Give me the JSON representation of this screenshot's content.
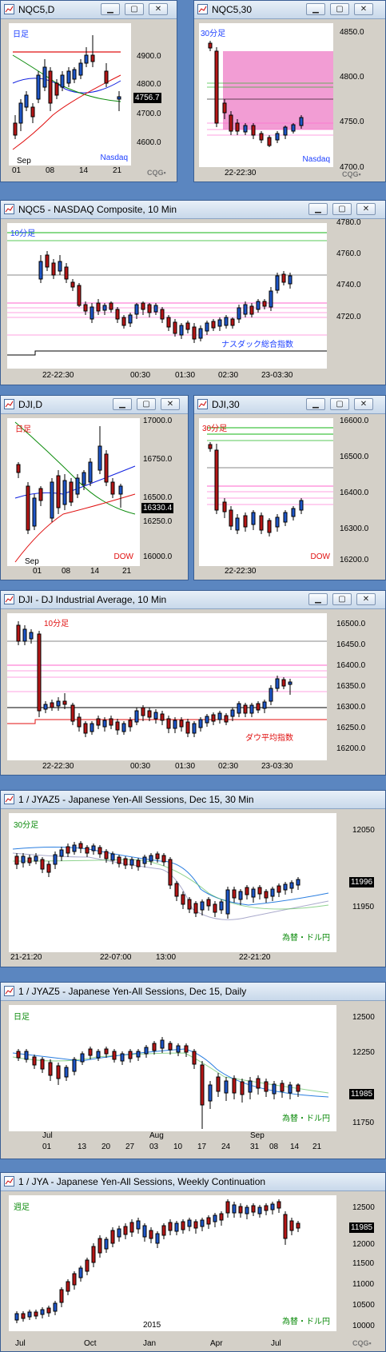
{
  "colors": {
    "up": "#1e56c8",
    "down": "#b51616",
    "ma_red": "#e01010",
    "ma_green": "#0a8a0a",
    "ma_blue": "#1020e0",
    "pink": "#ff66cc",
    "pink_box": "#f08ccc",
    "green_line": "#14b414"
  },
  "icons": {
    "window": "chart-window-icon",
    "minimize": "minimize-icon",
    "maximize": "maximize-icon",
    "close": "close-icon"
  },
  "windows": [
    {
      "id": "nqc5d",
      "title": "NQC5,D",
      "label": "日足",
      "label_color": "#1e40ff",
      "brand": "Nasdaq",
      "brand_color": "#1e40ff",
      "yticks": [
        "4900.0",
        "4800.0",
        "4700.0",
        "4600.0"
      ],
      "last": "4756.7",
      "xticks": [
        "01",
        "08",
        "14",
        "21"
      ],
      "month": "Sep"
    },
    {
      "id": "nqc530",
      "title": "NQC5,30",
      "label": "30分足",
      "label_color": "#1e40ff",
      "brand": "Nasdaq",
      "brand_color": "#1e40ff",
      "yticks": [
        "4850.0",
        "4800.0",
        "4750.0",
        "4700.0"
      ],
      "xticks": [
        "22-22:30"
      ]
    },
    {
      "id": "nqc510",
      "title": "NQC5 - NASDAQ Composite, 10 Min",
      "label": "10分足",
      "label_color": "#1e40ff",
      "brand": "ナスダック総合指数",
      "brand_color": "#1e40ff",
      "yticks": [
        "4780.0",
        "4760.0",
        "4740.0",
        "4720.0"
      ],
      "xticks": [
        "22-22:30",
        "00:30",
        "01:30",
        "02:30",
        "23-03:30"
      ]
    },
    {
      "id": "djid",
      "title": "DJI,D",
      "label": "日足",
      "label_color": "#e01010",
      "brand": "DOW",
      "brand_color": "#e01010",
      "yticks": [
        "17000.0",
        "16750.0",
        "16500.0",
        "16250.0",
        "16000.0"
      ],
      "last": "16330.4",
      "xticks": [
        "01",
        "08",
        "14",
        "21"
      ],
      "month": "Sep"
    },
    {
      "id": "dji30",
      "title": "DJI,30",
      "label": "30分足",
      "label_color": "#e01010",
      "brand": "DOW",
      "brand_color": "#e01010",
      "yticks": [
        "16600.0",
        "16500.0",
        "16400.0",
        "16300.0",
        "16200.0"
      ],
      "xticks": [
        "22-22:30"
      ]
    },
    {
      "id": "dji10",
      "title": "DJI - DJ Industrial Average, 10 Min",
      "label": "10分足",
      "label_color": "#e01010",
      "brand": "ダウ平均指数",
      "brand_color": "#e01010",
      "yticks": [
        "16500.0",
        "16450.0",
        "16400.0",
        "16350.0",
        "16300.0",
        "16250.0",
        "16200.0"
      ],
      "xticks": [
        "22-22:30",
        "00:30",
        "01:30",
        "02:30",
        "23-03:30"
      ]
    },
    {
      "id": "jya30",
      "title": "1 / JYAZ5 - Japanese Yen-All Sessions, Dec 15, 30 Min",
      "label": "30分足",
      "label_color": "#0a8a0a",
      "brand": "為替・ドル円",
      "brand_color": "#0a8a0a",
      "yticks": [
        "12050",
        "11950"
      ],
      "last": "11996",
      "xticks": [
        "21-21:20",
        "22-07:00",
        "13:00",
        "22-21:20"
      ]
    },
    {
      "id": "jyad",
      "title": "1 / JYAZ5 - Japanese Yen-All Sessions, Dec 15, Daily",
      "label": "日足",
      "label_color": "#0a8a0a",
      "brand": "為替・ドル円",
      "brand_color": "#0a8a0a",
      "yticks": [
        "12500",
        "12250",
        "11750"
      ],
      "last": "11985",
      "xticks": [
        "01",
        "13",
        "20",
        "27",
        "03",
        "10",
        "17",
        "24",
        "31",
        "08",
        "14",
        "21"
      ],
      "months": [
        "Jul",
        "Aug",
        "Sep"
      ]
    },
    {
      "id": "jyaw",
      "title": "1 / JYA - Japanese Yen-All Sessions, Weekly Continuation",
      "label": "週足",
      "label_color": "#0a8a0a",
      "brand": "為替・ドル円",
      "brand_color": "#0a8a0a",
      "yticks": [
        "12500",
        "12000",
        "11500",
        "11000",
        "10500",
        "10000"
      ],
      "last": "11985",
      "xticks": [
        "Jul",
        "Oct",
        "Jan",
        "Apr",
        "Jul"
      ],
      "year": "2015"
    }
  ]
}
